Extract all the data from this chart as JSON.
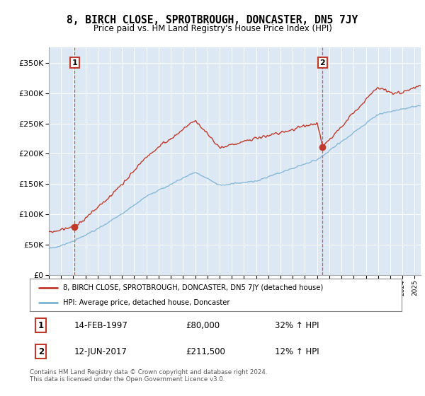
{
  "title": "8, BIRCH CLOSE, SPROTBROUGH, DONCASTER, DN5 7JY",
  "subtitle": "Price paid vs. HM Land Registry's House Price Index (HPI)",
  "legend_label_red": "8, BIRCH CLOSE, SPROTBROUGH, DONCASTER, DN5 7JY (detached house)",
  "legend_label_blue": "HPI: Average price, detached house, Doncaster",
  "annotation1_label": "1",
  "annotation1_date": "14-FEB-1997",
  "annotation1_price": "£80,000",
  "annotation1_hpi": "32% ↑ HPI",
  "annotation2_label": "2",
  "annotation2_date": "12-JUN-2017",
  "annotation2_price": "£211,500",
  "annotation2_hpi": "12% ↑ HPI",
  "footer": "Contains HM Land Registry data © Crown copyright and database right 2024.\nThis data is licensed under the Open Government Licence v3.0.",
  "xmin": 1995.0,
  "xmax": 2025.5,
  "ymin": 0,
  "ymax": 375000,
  "yticks": [
    0,
    50000,
    100000,
    150000,
    200000,
    250000,
    300000,
    350000
  ],
  "ytick_labels": [
    "£0",
    "£50K",
    "£100K",
    "£150K",
    "£200K",
    "£250K",
    "£300K",
    "£350K"
  ],
  "background_color": "#dce9f5",
  "grid_color": "#ffffff",
  "red_color": "#c0392b",
  "blue_color": "#7fb3d3",
  "marker1_x": 1997.12,
  "marker1_y": 80000,
  "marker2_x": 2017.45,
  "marker2_y": 211500,
  "vline1_x": 1997.12,
  "vline2_x": 2017.45
}
